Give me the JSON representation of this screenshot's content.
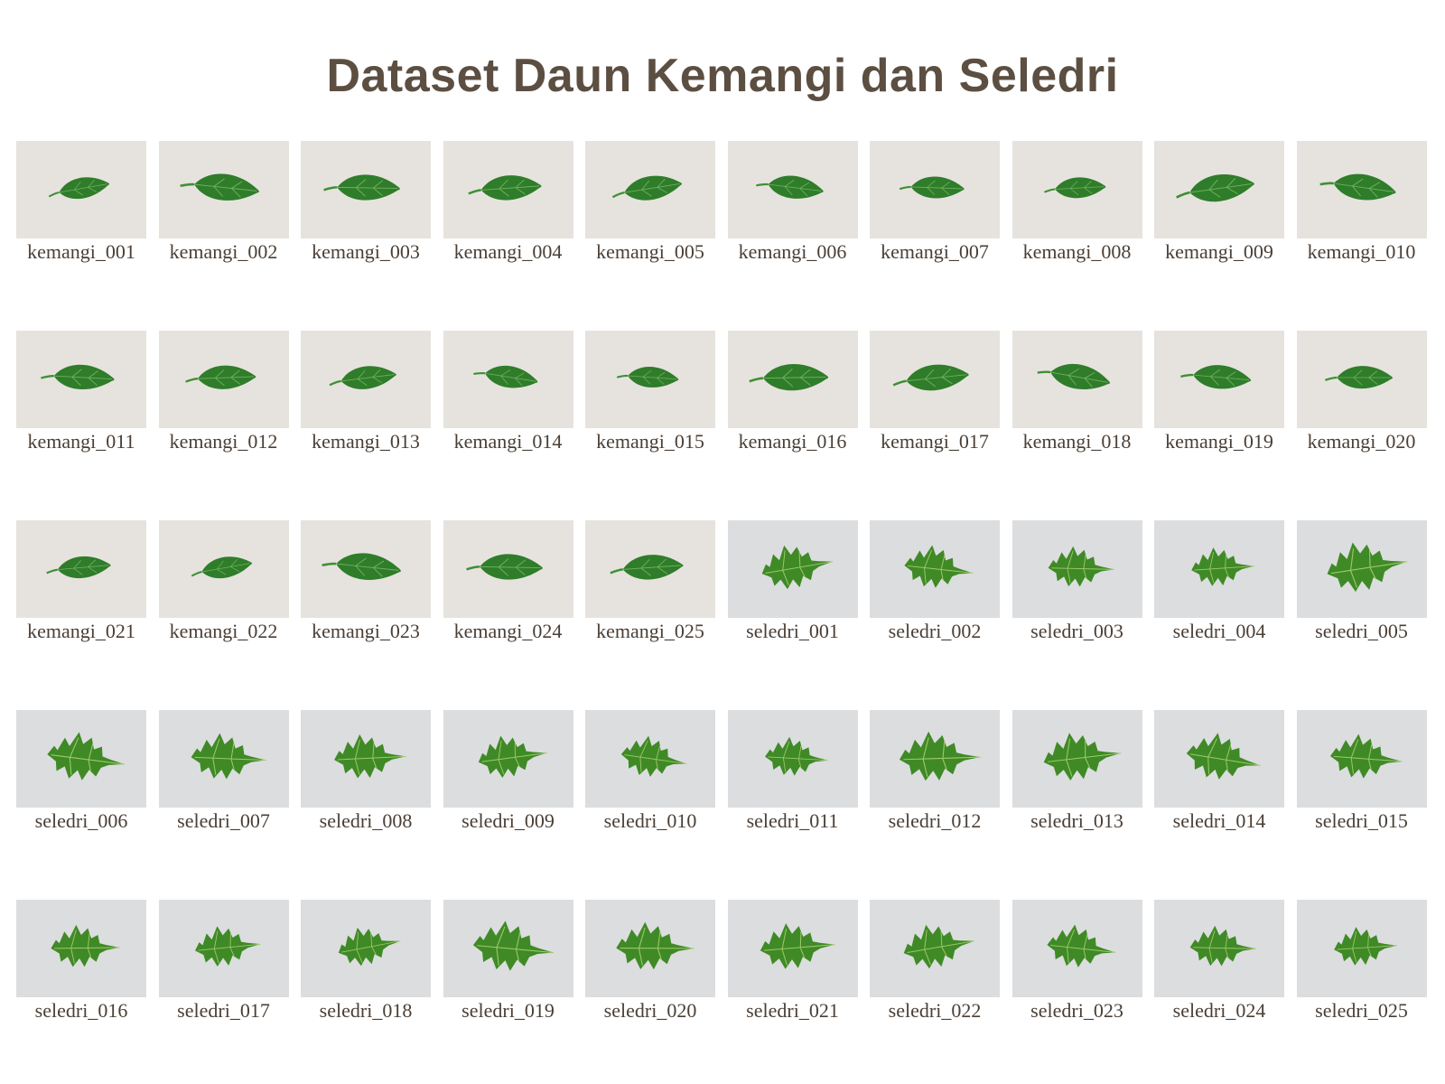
{
  "title": "Dataset Daun Kemangi dan Seledri",
  "colors": {
    "title": "#5c4f42",
    "caption": "#4a3f36",
    "kemangi_bg": "#e6e3de",
    "seledri_bg": "#dcdddf",
    "kemangi_leaf": "#2f7d2a",
    "seledri_leaf": "#3f8a26"
  },
  "icons": {
    "kemangi": "basil-leaf-icon",
    "seledri": "celery-leaf-icon"
  },
  "images": [
    {
      "label": "kemangi_001",
      "type": "kemangi"
    },
    {
      "label": "kemangi_002",
      "type": "kemangi"
    },
    {
      "label": "kemangi_003",
      "type": "kemangi"
    },
    {
      "label": "kemangi_004",
      "type": "kemangi"
    },
    {
      "label": "kemangi_005",
      "type": "kemangi"
    },
    {
      "label": "kemangi_006",
      "type": "kemangi"
    },
    {
      "label": "kemangi_007",
      "type": "kemangi"
    },
    {
      "label": "kemangi_008",
      "type": "kemangi"
    },
    {
      "label": "kemangi_009",
      "type": "kemangi"
    },
    {
      "label": "kemangi_010",
      "type": "kemangi"
    },
    {
      "label": "kemangi_011",
      "type": "kemangi"
    },
    {
      "label": "kemangi_012",
      "type": "kemangi"
    },
    {
      "label": "kemangi_013",
      "type": "kemangi"
    },
    {
      "label": "kemangi_014",
      "type": "kemangi"
    },
    {
      "label": "kemangi_015",
      "type": "kemangi"
    },
    {
      "label": "kemangi_016",
      "type": "kemangi"
    },
    {
      "label": "kemangi_017",
      "type": "kemangi"
    },
    {
      "label": "kemangi_018",
      "type": "kemangi"
    },
    {
      "label": "kemangi_019",
      "type": "kemangi"
    },
    {
      "label": "kemangi_020",
      "type": "kemangi"
    },
    {
      "label": "kemangi_021",
      "type": "kemangi"
    },
    {
      "label": "kemangi_022",
      "type": "kemangi"
    },
    {
      "label": "kemangi_023",
      "type": "kemangi"
    },
    {
      "label": "kemangi_024",
      "type": "kemangi"
    },
    {
      "label": "kemangi_025",
      "type": "kemangi"
    },
    {
      "label": "seledri_001",
      "type": "seledri"
    },
    {
      "label": "seledri_002",
      "type": "seledri"
    },
    {
      "label": "seledri_003",
      "type": "seledri"
    },
    {
      "label": "seledri_004",
      "type": "seledri"
    },
    {
      "label": "seledri_005",
      "type": "seledri"
    },
    {
      "label": "seledri_006",
      "type": "seledri"
    },
    {
      "label": "seledri_007",
      "type": "seledri"
    },
    {
      "label": "seledri_008",
      "type": "seledri"
    },
    {
      "label": "seledri_009",
      "type": "seledri"
    },
    {
      "label": "seledri_010",
      "type": "seledri"
    },
    {
      "label": "seledri_011",
      "type": "seledri"
    },
    {
      "label": "seledri_012",
      "type": "seledri"
    },
    {
      "label": "seledri_013",
      "type": "seledri"
    },
    {
      "label": "seledri_014",
      "type": "seledri"
    },
    {
      "label": "seledri_015",
      "type": "seledri"
    },
    {
      "label": "seledri_016",
      "type": "seledri"
    },
    {
      "label": "seledri_017",
      "type": "seledri"
    },
    {
      "label": "seledri_018",
      "type": "seledri"
    },
    {
      "label": "seledri_019",
      "type": "seledri"
    },
    {
      "label": "seledri_020",
      "type": "seledri"
    },
    {
      "label": "seledri_021",
      "type": "seledri"
    },
    {
      "label": "seledri_022",
      "type": "seledri"
    },
    {
      "label": "seledri_023",
      "type": "seledri"
    },
    {
      "label": "seledri_024",
      "type": "seledri"
    },
    {
      "label": "seledri_025",
      "type": "seledri"
    }
  ]
}
